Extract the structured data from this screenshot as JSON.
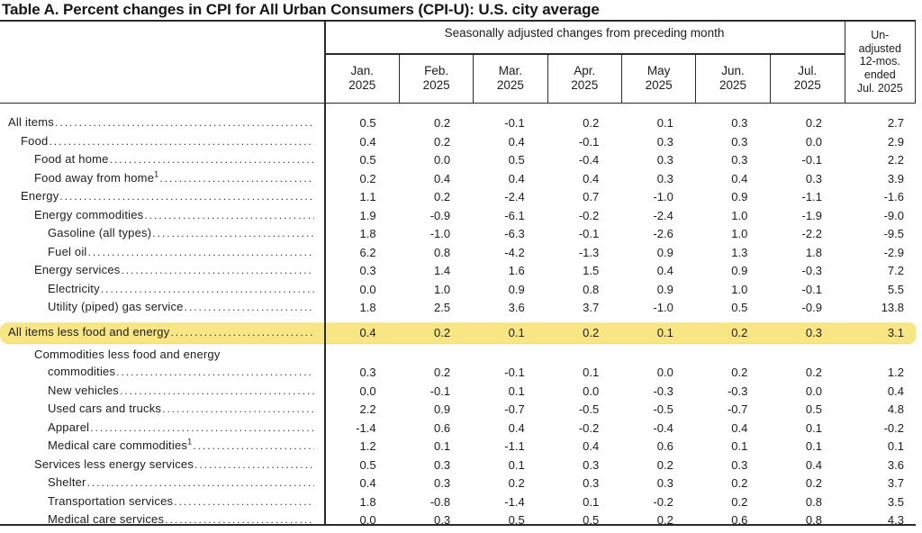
{
  "title": "Table A. Percent changes in CPI for All Urban Consumers (CPI-U): U.S. city average",
  "table": {
    "seasonal_header": "Seasonally adjusted changes from preceding month",
    "months": [
      "Jan.\n2025",
      "Feb.\n2025",
      "Mar.\n2025",
      "Apr.\n2025",
      "May\n2025",
      "Jun.\n2025",
      "Jul.\n2025"
    ],
    "unadjusted_header": "Un-\nadjusted\n12-mos.\nended\nJul. 2025",
    "highlight_color": "#f8e685",
    "rows": [
      {
        "label": "All items",
        "indent": 0,
        "values": [
          "0.5",
          "0.2",
          "-0.1",
          "0.2",
          "0.1",
          "0.3",
          "0.2",
          "2.7"
        ]
      },
      {
        "label": "Food",
        "indent": 1,
        "values": [
          "0.4",
          "0.2",
          "0.4",
          "-0.1",
          "0.3",
          "0.3",
          "0.0",
          "2.9"
        ]
      },
      {
        "label": "Food at home",
        "indent": 2,
        "values": [
          "0.5",
          "0.0",
          "0.5",
          "-0.4",
          "0.3",
          "0.3",
          "-0.1",
          "2.2"
        ]
      },
      {
        "label": "Food away from home",
        "footnote": "1",
        "indent": 2,
        "values": [
          "0.2",
          "0.4",
          "0.4",
          "0.4",
          "0.3",
          "0.4",
          "0.3",
          "3.9"
        ]
      },
      {
        "label": "Energy",
        "indent": 1,
        "values": [
          "1.1",
          "0.2",
          "-2.4",
          "0.7",
          "-1.0",
          "0.9",
          "-1.1",
          "-1.6"
        ]
      },
      {
        "label": "Energy commodities",
        "indent": 2,
        "values": [
          "1.9",
          "-0.9",
          "-6.1",
          "-0.2",
          "-2.4",
          "1.0",
          "-1.9",
          "-9.0"
        ]
      },
      {
        "label": "Gasoline (all types)",
        "indent": 3,
        "values": [
          "1.8",
          "-1.0",
          "-6.3",
          "-0.1",
          "-2.6",
          "1.0",
          "-2.2",
          "-9.5"
        ]
      },
      {
        "label": "Fuel oil",
        "indent": 3,
        "values": [
          "6.2",
          "0.8",
          "-4.2",
          "-1.3",
          "0.9",
          "1.3",
          "1.8",
          "-2.9"
        ]
      },
      {
        "label": "Energy services",
        "indent": 2,
        "values": [
          "0.3",
          "1.4",
          "1.6",
          "1.5",
          "0.4",
          "0.9",
          "-0.3",
          "7.2"
        ]
      },
      {
        "label": "Electricity",
        "indent": 3,
        "values": [
          "0.0",
          "1.0",
          "0.9",
          "0.8",
          "0.9",
          "1.0",
          "-0.1",
          "5.5"
        ]
      },
      {
        "label": "Utility (piped) gas service",
        "indent": 3,
        "values": [
          "1.8",
          "2.5",
          "3.6",
          "3.7",
          "-1.0",
          "0.5",
          "-0.9",
          "13.8"
        ]
      },
      {
        "label": "All items less food and energy",
        "indent": 0,
        "highlight": true,
        "values": [
          "0.4",
          "0.2",
          "0.1",
          "0.2",
          "0.1",
          "0.2",
          "0.3",
          "3.1"
        ]
      },
      {
        "label": "Commodities less food and energy",
        "label_line2": "commodities",
        "indent": 2,
        "values": [
          "0.3",
          "0.2",
          "-0.1",
          "0.1",
          "0.0",
          "0.2",
          "0.2",
          "1.2"
        ]
      },
      {
        "label": "New vehicles",
        "indent": 3,
        "values": [
          "0.0",
          "-0.1",
          "0.1",
          "0.0",
          "-0.3",
          "-0.3",
          "0.0",
          "0.4"
        ]
      },
      {
        "label": "Used cars and trucks",
        "indent": 3,
        "values": [
          "2.2",
          "0.9",
          "-0.7",
          "-0.5",
          "-0.5",
          "-0.7",
          "0.5",
          "4.8"
        ]
      },
      {
        "label": "Apparel",
        "indent": 3,
        "values": [
          "-1.4",
          "0.6",
          "0.4",
          "-0.2",
          "-0.4",
          "0.4",
          "0.1",
          "-0.2"
        ]
      },
      {
        "label": "Medical care commodities",
        "footnote": "1",
        "indent": 3,
        "values": [
          "1.2",
          "0.1",
          "-1.1",
          "0.4",
          "0.6",
          "0.1",
          "0.1",
          "0.1"
        ]
      },
      {
        "label": "Services less energy services",
        "indent": 2,
        "values": [
          "0.5",
          "0.3",
          "0.1",
          "0.3",
          "0.2",
          "0.3",
          "0.4",
          "3.6"
        ]
      },
      {
        "label": "Shelter",
        "indent": 3,
        "values": [
          "0.4",
          "0.3",
          "0.2",
          "0.3",
          "0.3",
          "0.2",
          "0.2",
          "3.7"
        ]
      },
      {
        "label": "Transportation services",
        "indent": 3,
        "values": [
          "1.8",
          "-0.8",
          "-1.4",
          "0.1",
          "-0.2",
          "0.2",
          "0.8",
          "3.5"
        ]
      },
      {
        "label": "Medical care services",
        "indent": 3,
        "values": [
          "0.0",
          "0.3",
          "0.5",
          "0.5",
          "0.2",
          "0.6",
          "0.8",
          "4.3"
        ]
      }
    ]
  }
}
